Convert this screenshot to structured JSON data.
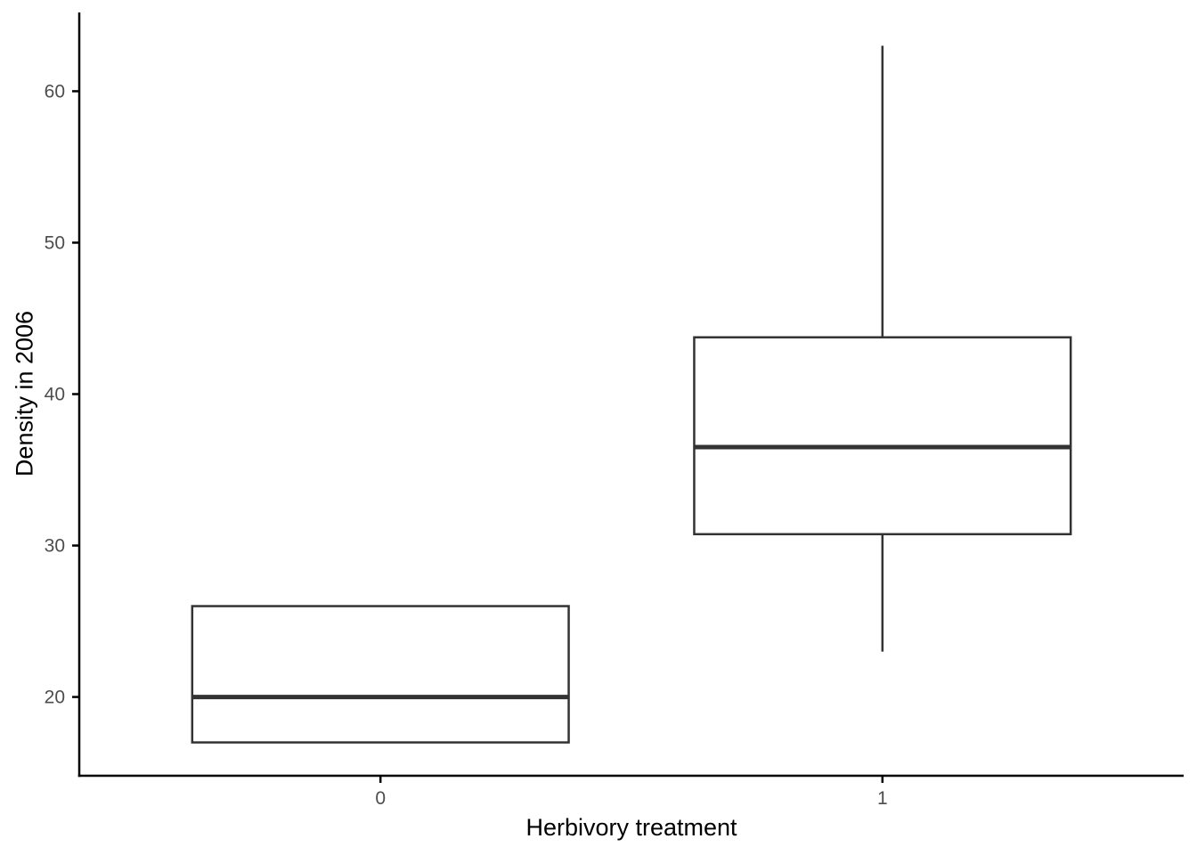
{
  "chart_data": {
    "type": "boxplot",
    "title": "",
    "xlabel": "Herbivory treatment",
    "ylabel": "Density in 2006",
    "categories": [
      "0",
      "1"
    ],
    "ylim": [
      14.8,
      65.2
    ],
    "y_ticks": [
      {
        "value": 20,
        "label": "20"
      },
      {
        "value": 30,
        "label": "30"
      },
      {
        "value": 40,
        "label": "40"
      },
      {
        "value": 50,
        "label": "50"
      },
      {
        "value": 60,
        "label": "60"
      }
    ],
    "grid": false,
    "legend_position": "none",
    "boxes": [
      {
        "category": "0",
        "whisker_low": 17,
        "q1": 17,
        "median": 20,
        "q3": 26,
        "whisker_high": 26
      },
      {
        "category": "1",
        "whisker_low": 23,
        "q1": 30.75,
        "median": 36.5,
        "q3": 43.75,
        "whisker_high": 63
      }
    ],
    "colors": {
      "background": "#ffffff",
      "box_fill": "#ffffff",
      "box_border": "#333333",
      "median_line": "#333333",
      "axis_line": "#000000",
      "tick_label": "#4d4d4d",
      "axis_title": "#000000"
    }
  }
}
